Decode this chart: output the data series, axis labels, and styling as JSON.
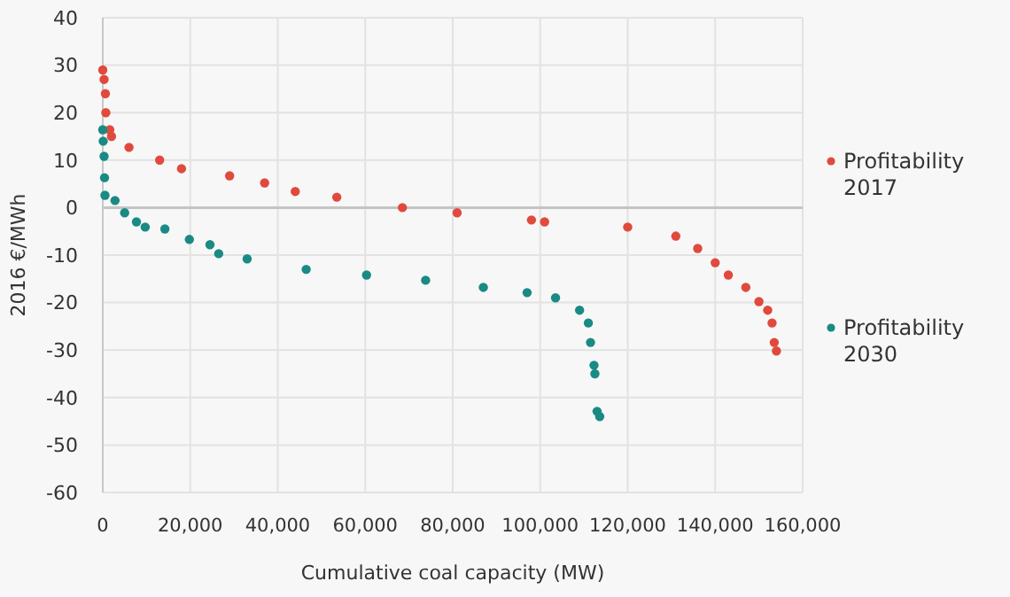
{
  "chart_data": {
    "type": "scatter",
    "xlabel": "Cumulative coal capacity (MW)",
    "ylabel": "2016 €/MWh",
    "xlim": [
      0,
      160000
    ],
    "xticks": [
      0,
      {
        "value": 20000,
        "label": "20,000"
      },
      {
        "value": 40000,
        "label": "40,000"
      },
      {
        "value": 60000,
        "label": "60,000"
      },
      {
        "value": 80000,
        "label": "80,000"
      },
      {
        "value": 100000,
        "label": "100,000"
      },
      {
        "value": 120000,
        "label": "120,000"
      },
      {
        "value": 140000,
        "label": "140,000"
      },
      {
        "value": 160000,
        "label": "160,000"
      }
    ],
    "ylim": [
      -60,
      40
    ],
    "yticks": [
      -60,
      -50,
      -40,
      -30,
      -20,
      -10,
      0,
      10,
      20,
      30,
      40
    ],
    "grid": true,
    "legend": "right",
    "marker": "circle",
    "series": [
      {
        "name": "Profitability 2017",
        "color": "#e04a3c",
        "x": [
          0,
          300,
          600,
          700,
          1600,
          2000,
          6000,
          13000,
          18000,
          29000,
          37000,
          44000,
          53500,
          68500,
          81000,
          98000,
          101000,
          120000,
          131000,
          136000,
          140000,
          143000,
          147000,
          150000,
          152000,
          153000,
          153500,
          154000
        ],
        "values": [
          29,
          27,
          24,
          20,
          16.4,
          15,
          12.7,
          10,
          8.2,
          6.7,
          5.2,
          3.4,
          2.2,
          0,
          -1.1,
          -2.6,
          -3,
          -4.1,
          -6,
          -8.6,
          -11.6,
          -14.2,
          -16.8,
          -19.8,
          -21.6,
          -24.3,
          -28.4,
          -30.2
        ]
      },
      {
        "name": "Profitability 2030",
        "color": "#1a8a84",
        "x": [
          0,
          100,
          300,
          400,
          500,
          2800,
          5000,
          7700,
          9700,
          14200,
          19800,
          24500,
          26500,
          33000,
          46500,
          60300,
          73800,
          87000,
          97000,
          103500,
          109000,
          111000,
          111500,
          112300,
          112500,
          113000,
          113600
        ],
        "values": [
          16.4,
          14,
          10.8,
          6.3,
          2.6,
          1.5,
          -1.1,
          -3,
          -4.1,
          -4.5,
          -6.7,
          -7.8,
          -9.7,
          -10.8,
          -13,
          -14.2,
          -15.3,
          -16.8,
          -17.9,
          -19,
          -21.6,
          -24.3,
          -28.4,
          -33.2,
          -35,
          -42.9,
          -44
        ]
      }
    ]
  }
}
